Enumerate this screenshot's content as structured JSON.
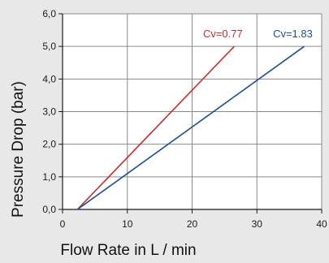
{
  "chart_data": {
    "type": "line",
    "xlabel": "Flow Rate in L / min",
    "ylabel": "Pressure Drop (bar)",
    "xlim": [
      0,
      40
    ],
    "ylim": [
      0,
      6
    ],
    "x_ticks": [
      0,
      10,
      20,
      30,
      40
    ],
    "y_ticks": [
      0,
      1,
      2,
      3,
      4,
      5,
      6
    ],
    "x_tick_labels": [
      "0",
      "10",
      "20",
      "30",
      "40"
    ],
    "y_tick_labels": [
      "0,0",
      "1,0",
      "2,0",
      "3,0",
      "4,0",
      "5,0",
      "6,0"
    ],
    "grid": true,
    "legend": "none",
    "series": [
      {
        "label": "Cv=0.77",
        "color": "#cc2b2b",
        "x": [
          2.3,
          26.5
        ],
        "y": [
          0.0,
          5.0
        ]
      },
      {
        "label": "Cv=1.83",
        "color": "#1a4f9c",
        "x": [
          2.3,
          37.3
        ],
        "y": [
          0.0,
          5.0
        ]
      }
    ]
  }
}
